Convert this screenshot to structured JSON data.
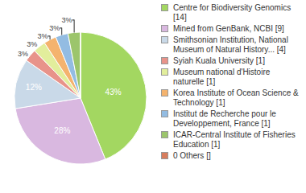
{
  "chart_data": {
    "type": "pie",
    "categories": [
      "Centre for Biodiversity Genomics [14]",
      "Mined from GenBank, NCBI [9]",
      "Smithsonian Institution, National Museum of Natural History... [4]",
      "Syiah Kuala University [1]",
      "Museum national d'Histoire naturelle [1]",
      "Korea Institute of Ocean Science & Technology [1]",
      "Institut de Recherche pour le Developpement, France [1]",
      "ICAR-Central Institute of Fisheries Education [1]",
      "0 Others []"
    ],
    "values": [
      43,
      28,
      12,
      3,
      3,
      3,
      3,
      3,
      0
    ],
    "value_labels": [
      "43%",
      "28%",
      "12%",
      "3%",
      "3%",
      "3%",
      "3%",
      "3%",
      null
    ],
    "colors": [
      "#a3d761",
      "#d9b8e0",
      "#c9d9e8",
      "#e8938a",
      "#e2ee9c",
      "#f4b36e",
      "#93bce2",
      "#9cc56c",
      "#d77c5c"
    ],
    "data_labels": true,
    "legend": "right"
  }
}
